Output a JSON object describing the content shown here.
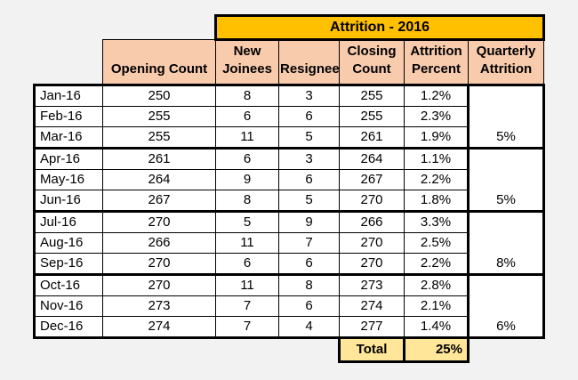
{
  "sheet": {
    "title": "Attrition - 2016",
    "headers": {
      "month": "",
      "opening_count": "Opening Count",
      "new_joinees": "New Joinees",
      "resignee": "Resignee",
      "closing_count": "Closing Count",
      "attrition_percent": "Attrition Percent",
      "quarterly_attrition": "Quarterly Attrition"
    },
    "rows": [
      {
        "month": "Jan-16",
        "opening_count": "250",
        "new_joinees": "8",
        "resignee": "3",
        "closing_count": "255",
        "attrition_percent": "1.2%"
      },
      {
        "month": "Feb-16",
        "opening_count": "255",
        "new_joinees": "6",
        "resignee": "6",
        "closing_count": "255",
        "attrition_percent": "2.3%"
      },
      {
        "month": "Mar-16",
        "opening_count": "255",
        "new_joinees": "11",
        "resignee": "5",
        "closing_count": "261",
        "attrition_percent": "1.9%"
      },
      {
        "month": "Apr-16",
        "opening_count": "261",
        "new_joinees": "6",
        "resignee": "3",
        "closing_count": "264",
        "attrition_percent": "1.1%"
      },
      {
        "month": "May-16",
        "opening_count": "264",
        "new_joinees": "9",
        "resignee": "6",
        "closing_count": "267",
        "attrition_percent": "2.2%"
      },
      {
        "month": "Jun-16",
        "opening_count": "267",
        "new_joinees": "8",
        "resignee": "5",
        "closing_count": "270",
        "attrition_percent": "1.8%"
      },
      {
        "month": "Jul-16",
        "opening_count": "270",
        "new_joinees": "5",
        "resignee": "9",
        "closing_count": "266",
        "attrition_percent": "3.3%"
      },
      {
        "month": "Aug-16",
        "opening_count": "266",
        "new_joinees": "11",
        "resignee": "7",
        "closing_count": "270",
        "attrition_percent": "2.5%"
      },
      {
        "month": "Sep-16",
        "opening_count": "270",
        "new_joinees": "6",
        "resignee": "6",
        "closing_count": "270",
        "attrition_percent": "2.2%"
      },
      {
        "month": "Oct-16",
        "opening_count": "270",
        "new_joinees": "11",
        "resignee": "8",
        "closing_count": "273",
        "attrition_percent": "2.8%"
      },
      {
        "month": "Nov-16",
        "opening_count": "273",
        "new_joinees": "7",
        "resignee": "6",
        "closing_count": "274",
        "attrition_percent": "2.1%"
      },
      {
        "month": "Dec-16",
        "opening_count": "274",
        "new_joinees": "7",
        "resignee": "4",
        "closing_count": "277",
        "attrition_percent": "1.4%"
      }
    ],
    "quarters": [
      {
        "value": "5%"
      },
      {
        "value": "5%"
      },
      {
        "value": "8%"
      },
      {
        "value": "6%"
      }
    ],
    "total": {
      "label": "Total",
      "value": "25%"
    },
    "colors": {
      "title_bg": "#FFC000",
      "header_bg": "#F8CBAD",
      "total_bg": "#FFE699",
      "cell_bg": "#FFFFFF",
      "canvas_bg": "#F2F2F2",
      "border": "#000000"
    }
  }
}
